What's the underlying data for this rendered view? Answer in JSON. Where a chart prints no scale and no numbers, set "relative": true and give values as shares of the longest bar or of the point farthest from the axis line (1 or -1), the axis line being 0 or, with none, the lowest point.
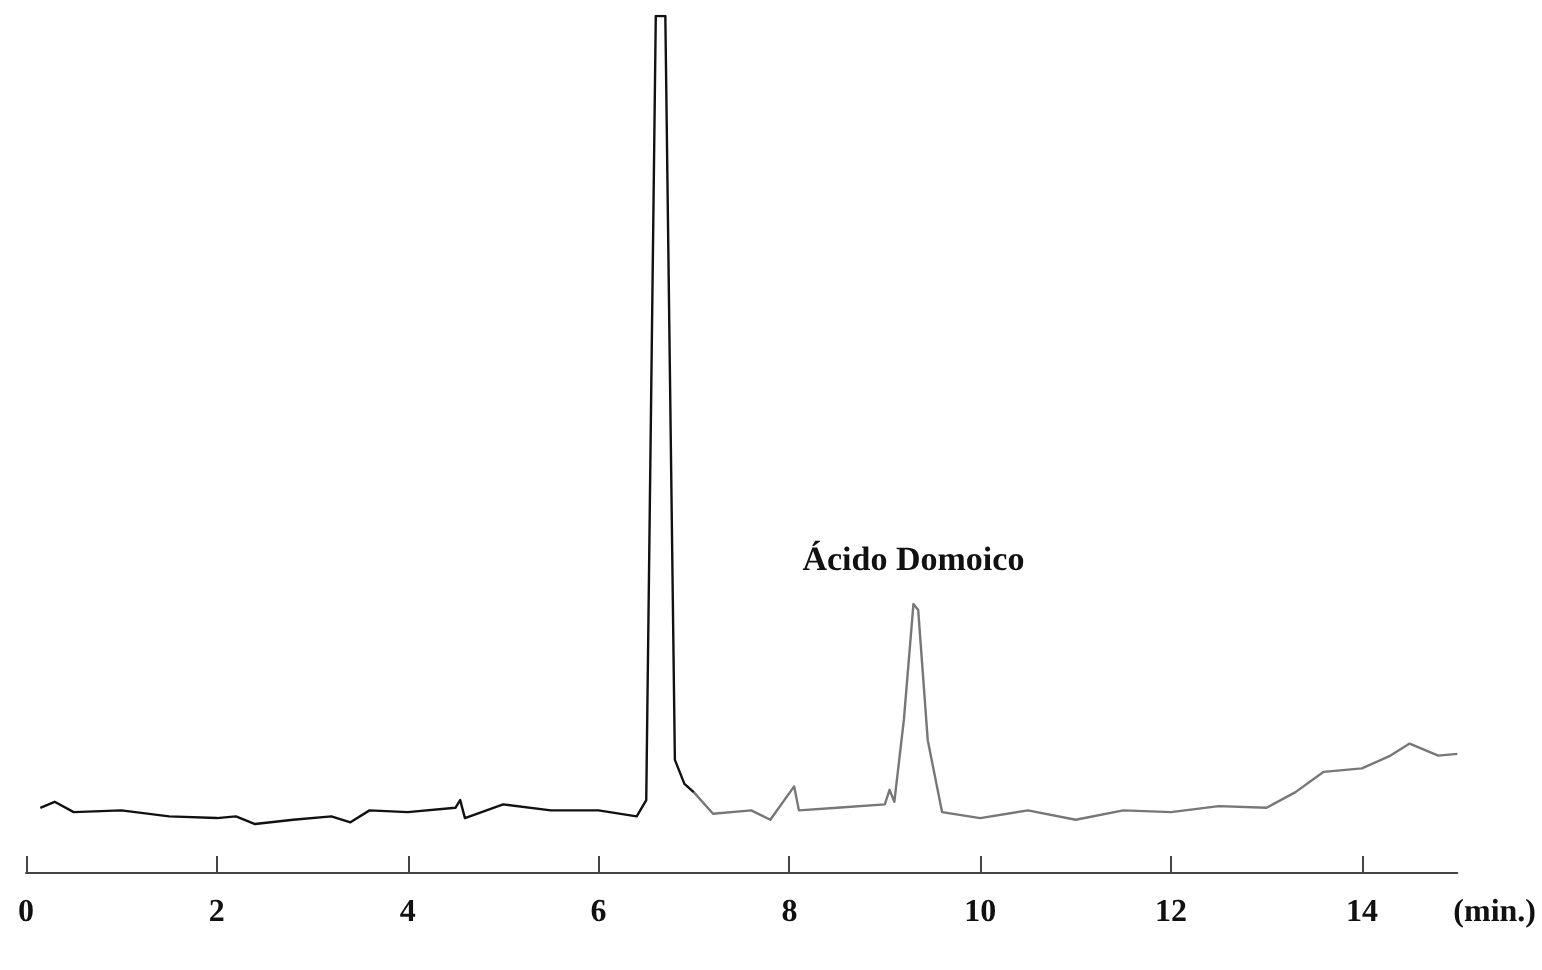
{
  "chart_data": {
    "type": "line",
    "relative": true,
    "xlabel": "(min.)",
    "xlim": [
      0,
      15
    ],
    "xticks": [
      0,
      2,
      4,
      6,
      8,
      10,
      12,
      14
    ],
    "grid": false,
    "marker": "none",
    "line_style": "solid",
    "annotations": [
      {
        "text": "Ácido Domoico",
        "x": 9.3,
        "y": 0.313
      }
    ],
    "series": [
      {
        "color": "#111111",
        "x": [
          0.15,
          0.3,
          0.5,
          1.0,
          1.5,
          2.0,
          2.2,
          2.4,
          2.8,
          3.2,
          3.4,
          3.6,
          4.0,
          4.5,
          4.55,
          4.6,
          5.0,
          5.5,
          6.0,
          6.4,
          6.5,
          6.6,
          6.7,
          6.8,
          6.9,
          7.0
        ],
        "values": [
          0.075,
          0.082,
          0.07,
          0.072,
          0.065,
          0.063,
          0.065,
          0.056,
          0.061,
          0.065,
          0.058,
          0.072,
          0.07,
          0.075,
          0.084,
          0.063,
          0.079,
          0.072,
          0.072,
          0.065,
          0.084,
          1,
          1,
          0.131,
          0.103,
          0.093
        ]
      },
      {
        "color": "#777777",
        "x": [
          7.0,
          7.2,
          7.6,
          7.8,
          8.05,
          8.1,
          8.5,
          9.0,
          9.05,
          9.1,
          9.2,
          9.3,
          9.35,
          9.45,
          9.6,
          10.0,
          10.5,
          11.0,
          11.5,
          12.0,
          12.5,
          13.0,
          13.3,
          13.6,
          14.0,
          14.3,
          14.5,
          14.8,
          15.0
        ],
        "values": [
          0.093,
          0.068,
          0.072,
          0.061,
          0.1,
          0.072,
          0.075,
          0.079,
          0.096,
          0.082,
          0.178,
          0.313,
          0.306,
          0.154,
          0.07,
          0.063,
          0.072,
          0.061,
          0.072,
          0.07,
          0.077,
          0.075,
          0.093,
          0.117,
          0.121,
          0.136,
          0.15,
          0.136,
          0.138
        ]
      }
    ]
  }
}
